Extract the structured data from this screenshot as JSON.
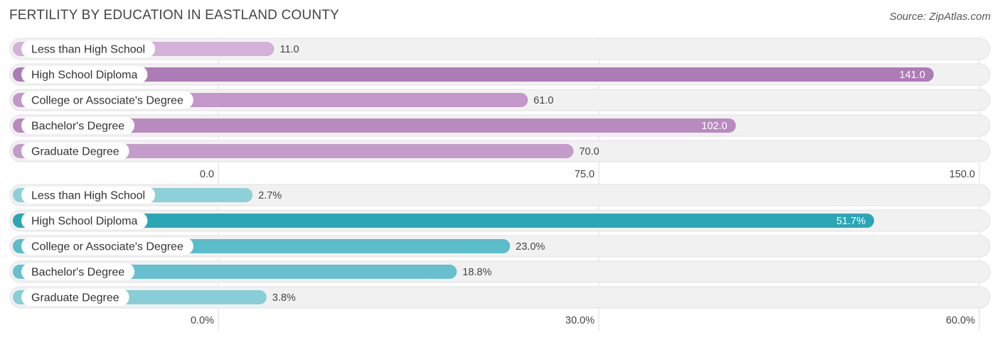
{
  "title": "FERTILITY BY EDUCATION IN EASTLAND COUNTY",
  "source": "Source: ZipAtlas.com",
  "chart_data": [
    {
      "type": "bar",
      "orientation": "horizontal",
      "categories": [
        "Less than High School",
        "High School Diploma",
        "College or Associate's Degree",
        "Bachelor's Degree",
        "Graduate Degree"
      ],
      "values": [
        11.0,
        141.0,
        61.0,
        102.0,
        70.0
      ],
      "value_labels": [
        "11.0",
        "141.0",
        "61.0",
        "102.0",
        "70.0"
      ],
      "xlim": [
        0,
        150
      ],
      "ticks": [
        "0.0",
        "75.0",
        "150.0"
      ],
      "colors": [
        "#d4b1d8",
        "#ad7bb5",
        "#c397c9",
        "#b98abf",
        "#c49cca"
      ],
      "grid": true
    },
    {
      "type": "bar",
      "orientation": "horizontal",
      "categories": [
        "Less than High School",
        "High School Diploma",
        "College or Associate's Degree",
        "Bachelor's Degree",
        "Graduate Degree"
      ],
      "values": [
        2.7,
        51.7,
        23.0,
        18.8,
        3.8
      ],
      "value_labels": [
        "2.7%",
        "51.7%",
        "23.0%",
        "18.8%",
        "3.8%"
      ],
      "xlim": [
        0,
        60
      ],
      "ticks": [
        "0.0%",
        "30.0%",
        "60.0%"
      ],
      "colors": [
        "#8dd0d9",
        "#2aa6b5",
        "#5bbcca",
        "#67c0cd",
        "#87ced8"
      ],
      "grid": true
    }
  ]
}
